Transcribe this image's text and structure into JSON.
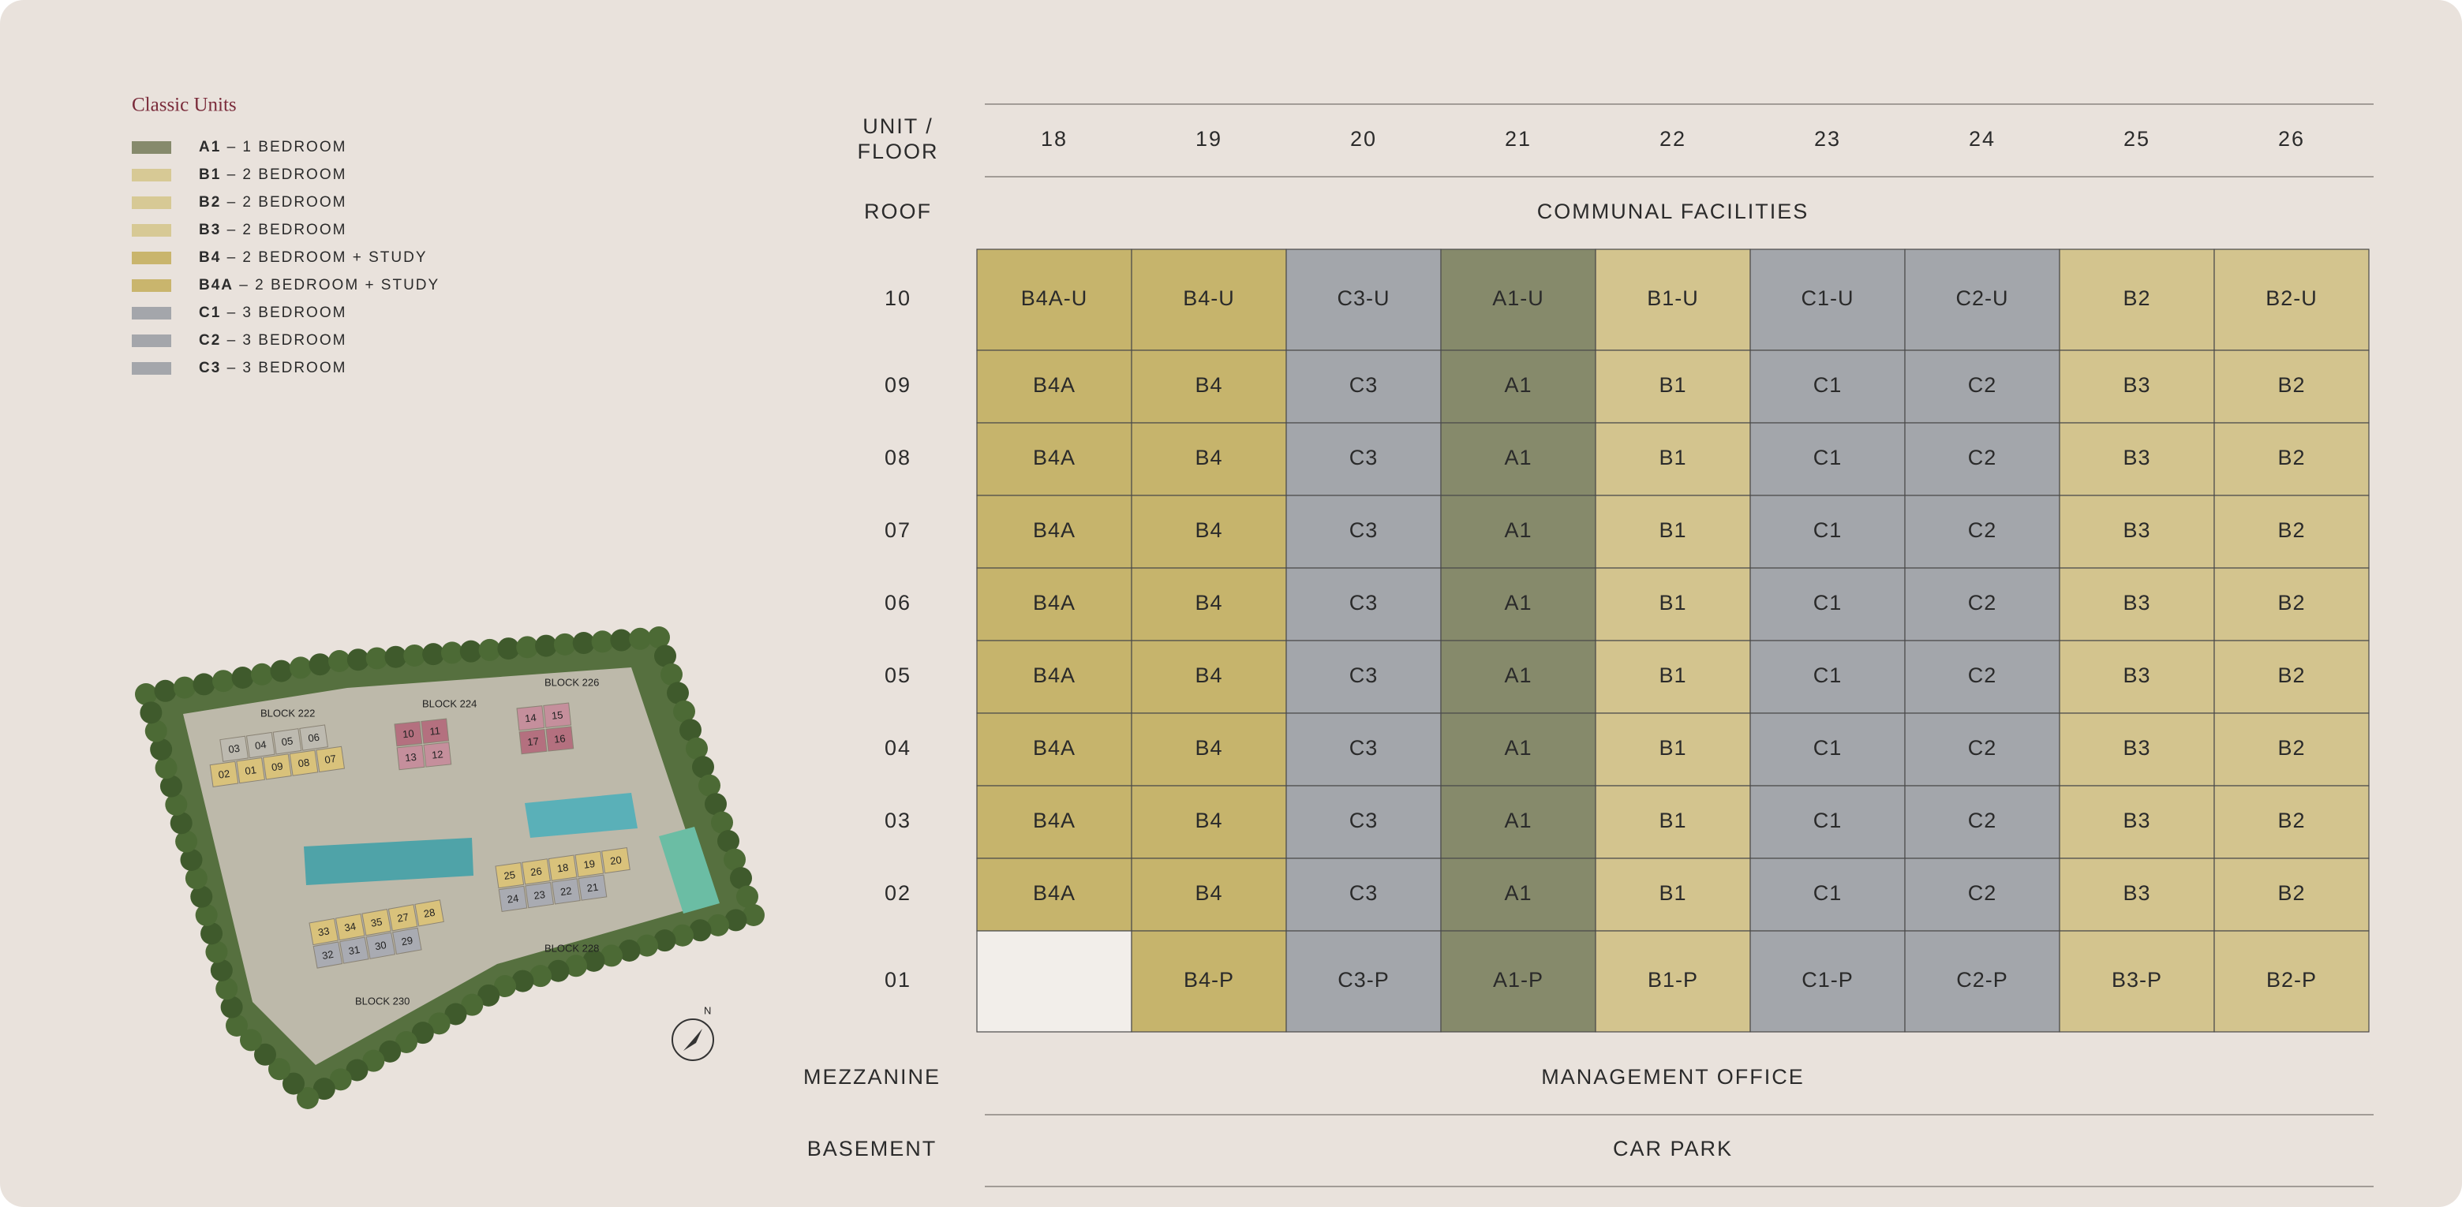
{
  "legend": {
    "title": "Classic Units",
    "items": [
      {
        "code": "A1",
        "desc": " – 1 BEDROOM",
        "color": "#868a6c"
      },
      {
        "code": "B1",
        "desc": " – 2 BEDROOM",
        "color": "#d7c995"
      },
      {
        "code": "B2",
        "desc": " – 2 BEDROOM",
        "color": "#d7c995"
      },
      {
        "code": "B3",
        "desc": " – 2 BEDROOM",
        "color": "#d7c995"
      },
      {
        "code": "B4",
        "desc": " – 2 BEDROOM + STUDY",
        "color": "#c9b56d"
      },
      {
        "code": "B4A",
        "desc": " – 2 BEDROOM + STUDY",
        "color": "#c9b56d"
      },
      {
        "code": "C1",
        "desc": " – 3 BEDROOM",
        "color": "#a4a6ab"
      },
      {
        "code": "C2",
        "desc": " – 3 BEDROOM",
        "color": "#a4a6ab"
      },
      {
        "code": "C3",
        "desc": " – 3 BEDROOM",
        "color": "#a4a6ab"
      }
    ]
  },
  "siteplan": {
    "compass": "N",
    "blocks": [
      {
        "label": "BLOCK 222",
        "rows": [
          {
            "units": [
              "03",
              "04",
              "05",
              "06"
            ],
            "color": "#bdbab0"
          },
          {
            "units": [
              "02",
              "01",
              "09",
              "08",
              "07"
            ],
            "color": "#d9c27b"
          }
        ]
      },
      {
        "label": "BLOCK 224",
        "rows": [
          {
            "units": [
              "10",
              "11"
            ],
            "color": "#b4707f"
          },
          {
            "units": [
              "13",
              "12"
            ],
            "color": "#c58f9c"
          }
        ]
      },
      {
        "label": "BLOCK 226",
        "rows": [
          {
            "units": [
              "14",
              "15"
            ],
            "color": "#c58f9c"
          },
          {
            "units": [
              "17",
              "16"
            ],
            "color": "#b4707f"
          }
        ]
      },
      {
        "label": "BLOCK 228",
        "rows": [
          {
            "units": [
              "25",
              "26",
              "18",
              "19",
              "20"
            ],
            "color": "#d9c27b"
          },
          {
            "units": [
              "24",
              "23",
              "22",
              "21"
            ],
            "color": "#a9abb2"
          }
        ]
      },
      {
        "label": "BLOCK 230",
        "rows": [
          {
            "units": [
              "33",
              "34",
              "35",
              "27",
              "28"
            ],
            "color": "#d9c27b"
          },
          {
            "units": [
              "32",
              "31",
              "30",
              "29"
            ],
            "color": "#a9abb2"
          }
        ]
      }
    ]
  },
  "table": {
    "corner": [
      "UNIT /",
      "FLOOR"
    ],
    "columns": [
      {
        "unit": "18",
        "color": "#c6b46c"
      },
      {
        "unit": "19",
        "color": "#c6b46c"
      },
      {
        "unit": "20",
        "color": "#a3a6ab"
      },
      {
        "unit": "21",
        "color": "#868a6b"
      },
      {
        "unit": "22",
        "color": "#d3c48e"
      },
      {
        "unit": "23",
        "color": "#a3a6ab"
      },
      {
        "unit": "24",
        "color": "#a3a6ab"
      },
      {
        "unit": "25",
        "color": "#d3c48e"
      },
      {
        "unit": "26",
        "color": "#d3c48e"
      }
    ],
    "top_rows": [
      {
        "floor": "ROOF",
        "text": "COMMUNAL FACILITIES"
      }
    ],
    "unit_rows": [
      {
        "floor": "10",
        "cells": [
          "B4A-U",
          "B4-U",
          "C3-U",
          "A1-U",
          "B1-U",
          "C1-U",
          "C2-U",
          "B2",
          "B2-U"
        ]
      },
      {
        "floor": "09",
        "cells": [
          "B4A",
          "B4",
          "C3",
          "A1",
          "B1",
          "C1",
          "C2",
          "B3",
          "B2"
        ]
      },
      {
        "floor": "08",
        "cells": [
          "B4A",
          "B4",
          "C3",
          "A1",
          "B1",
          "C1",
          "C2",
          "B3",
          "B2"
        ]
      },
      {
        "floor": "07",
        "cells": [
          "B4A",
          "B4",
          "C3",
          "A1",
          "B1",
          "C1",
          "C2",
          "B3",
          "B2"
        ]
      },
      {
        "floor": "06",
        "cells": [
          "B4A",
          "B4",
          "C3",
          "A1",
          "B1",
          "C1",
          "C2",
          "B3",
          "B2"
        ]
      },
      {
        "floor": "05",
        "cells": [
          "B4A",
          "B4",
          "C3",
          "A1",
          "B1",
          "C1",
          "C2",
          "B3",
          "B2"
        ]
      },
      {
        "floor": "04",
        "cells": [
          "B4A",
          "B4",
          "C3",
          "A1",
          "B1",
          "C1",
          "C2",
          "B3",
          "B2"
        ]
      },
      {
        "floor": "03",
        "cells": [
          "B4A",
          "B4",
          "C3",
          "A1",
          "B1",
          "C1",
          "C2",
          "B3",
          "B2"
        ]
      },
      {
        "floor": "02",
        "cells": [
          "B4A",
          "B4",
          "C3",
          "A1",
          "B1",
          "C1",
          "C2",
          "B3",
          "B2"
        ]
      },
      {
        "floor": "01",
        "cells": [
          null,
          "B4-P",
          "C3-P",
          "A1-P",
          "B1-P",
          "C1-P",
          "C2-P",
          "B3-P",
          "B2-P"
        ]
      }
    ],
    "bottom_rows": [
      {
        "floor": "MEZZANINE",
        "text": "MANAGEMENT OFFICE"
      },
      {
        "floor": "BASEMENT",
        "text": "CAR PARK"
      }
    ]
  }
}
